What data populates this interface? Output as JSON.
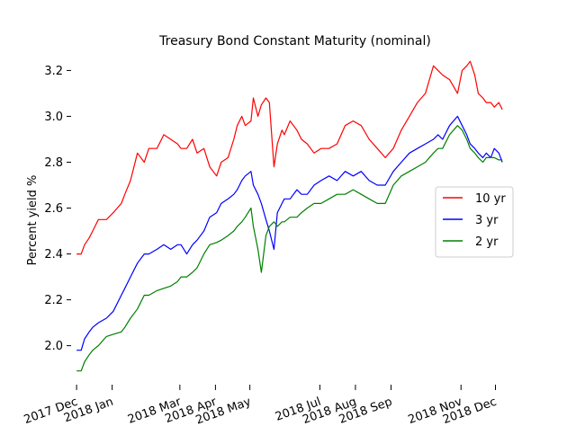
{
  "chart_data": {
    "type": "line",
    "title": "Treasury Bond Constant Maturity (nominal)",
    "xlabel": "",
    "ylabel": "Percent yield %",
    "x_tick_labels": [
      "2017 Dec",
      "2018 Jan",
      "2018 Mar",
      "2018 Apr",
      "2018 May",
      "2018 Jul",
      "2018 Aug",
      "2018 Sep",
      "2018 Nov",
      "2018 Dec"
    ],
    "y_ticks": [
      2.0,
      2.2,
      2.4,
      2.6,
      2.8,
      3.0,
      3.2
    ],
    "y_tick_labels": [
      "2.0",
      "2.2",
      "2.4",
      "2.6",
      "2.8",
      "3.0",
      "3.2"
    ],
    "xlim": [
      "2017-11-27",
      "2018-12-21"
    ],
    "ylim": [
      1.83,
      3.28
    ],
    "grid": false,
    "legend_position": "center-right",
    "x": [
      "2017-12-01",
      "2017-12-05",
      "2017-12-08",
      "2017-12-12",
      "2017-12-15",
      "2017-12-20",
      "2017-12-27",
      "2018-01-02",
      "2018-01-09",
      "2018-01-12",
      "2018-01-17",
      "2018-01-23",
      "2018-01-29",
      "2018-02-02",
      "2018-02-09",
      "2018-02-15",
      "2018-02-21",
      "2018-02-27",
      "2018-03-02",
      "2018-03-07",
      "2018-03-12",
      "2018-03-16",
      "2018-03-22",
      "2018-03-27",
      "2018-04-02",
      "2018-04-06",
      "2018-04-12",
      "2018-04-17",
      "2018-04-20",
      "2018-04-24",
      "2018-04-27",
      "2018-05-02",
      "2018-05-04",
      "2018-05-08",
      "2018-05-11",
      "2018-05-15",
      "2018-05-18",
      "2018-05-22",
      "2018-05-25",
      "2018-05-29",
      "2018-05-31",
      "2018-06-05",
      "2018-06-11",
      "2018-06-15",
      "2018-06-20",
      "2018-06-26",
      "2018-07-02",
      "2018-07-09",
      "2018-07-16",
      "2018-07-23",
      "2018-07-30",
      "2018-08-06",
      "2018-08-13",
      "2018-08-20",
      "2018-08-27",
      "2018-09-03",
      "2018-09-10",
      "2018-09-17",
      "2018-09-24",
      "2018-10-01",
      "2018-10-08",
      "2018-10-12",
      "2018-10-16",
      "2018-10-22",
      "2018-10-29",
      "2018-11-02",
      "2018-11-06",
      "2018-11-09",
      "2018-11-13",
      "2018-11-16",
      "2018-11-20",
      "2018-11-23",
      "2018-11-27",
      "2018-11-30",
      "2018-12-04",
      "2018-12-07"
    ],
    "series": [
      {
        "name": "10 yr",
        "color": "#ff0000",
        "values": [
          2.4,
          2.4,
          2.44,
          2.47,
          2.5,
          2.55,
          2.55,
          2.58,
          2.62,
          2.66,
          2.72,
          2.84,
          2.8,
          2.86,
          2.86,
          2.92,
          2.9,
          2.88,
          2.86,
          2.86,
          2.9,
          2.84,
          2.86,
          2.78,
          2.74,
          2.8,
          2.82,
          2.9,
          2.96,
          3.0,
          2.96,
          2.98,
          3.08,
          3.0,
          3.05,
          3.08,
          3.06,
          2.78,
          2.88,
          2.94,
          2.92,
          2.98,
          2.94,
          2.9,
          2.88,
          2.84,
          2.86,
          2.86,
          2.88,
          2.96,
          2.98,
          2.96,
          2.9,
          2.86,
          2.82,
          2.86,
          2.94,
          3.0,
          3.06,
          3.1,
          3.22,
          3.2,
          3.18,
          3.16,
          3.1,
          3.2,
          3.22,
          3.24,
          3.18,
          3.1,
          3.08,
          3.06,
          3.06,
          3.04,
          3.06,
          3.03
        ]
      },
      {
        "name": "3 yr",
        "color": "#0000ff",
        "values": [
          1.98,
          1.98,
          2.03,
          2.06,
          2.08,
          2.1,
          2.12,
          2.15,
          2.22,
          2.25,
          2.3,
          2.36,
          2.4,
          2.4,
          2.42,
          2.44,
          2.42,
          2.44,
          2.44,
          2.4,
          2.44,
          2.46,
          2.5,
          2.56,
          2.58,
          2.62,
          2.64,
          2.66,
          2.68,
          2.72,
          2.74,
          2.76,
          2.7,
          2.66,
          2.62,
          2.55,
          2.5,
          2.42,
          2.58,
          2.62,
          2.64,
          2.64,
          2.68,
          2.66,
          2.66,
          2.7,
          2.72,
          2.74,
          2.72,
          2.76,
          2.74,
          2.76,
          2.72,
          2.7,
          2.7,
          2.76,
          2.8,
          2.84,
          2.86,
          2.88,
          2.9,
          2.92,
          2.9,
          2.96,
          3.0,
          2.96,
          2.92,
          2.88,
          2.86,
          2.84,
          2.82,
          2.84,
          2.82,
          2.86,
          2.84,
          2.8
        ]
      },
      {
        "name": "2 yr",
        "color": "#008000",
        "values": [
          1.89,
          1.89,
          1.93,
          1.96,
          1.98,
          2.0,
          2.04,
          2.05,
          2.06,
          2.08,
          2.12,
          2.16,
          2.22,
          2.22,
          2.24,
          2.25,
          2.26,
          2.28,
          2.3,
          2.3,
          2.32,
          2.34,
          2.4,
          2.44,
          2.45,
          2.46,
          2.48,
          2.5,
          2.52,
          2.54,
          2.56,
          2.6,
          2.52,
          2.42,
          2.32,
          2.48,
          2.52,
          2.54,
          2.52,
          2.54,
          2.54,
          2.56,
          2.56,
          2.58,
          2.6,
          2.62,
          2.62,
          2.64,
          2.66,
          2.66,
          2.68,
          2.66,
          2.64,
          2.62,
          2.62,
          2.7,
          2.74,
          2.76,
          2.78,
          2.8,
          2.84,
          2.86,
          2.86,
          2.92,
          2.96,
          2.94,
          2.9,
          2.86,
          2.84,
          2.82,
          2.8,
          2.82,
          2.82,
          2.82,
          2.81,
          2.81
        ]
      }
    ]
  }
}
